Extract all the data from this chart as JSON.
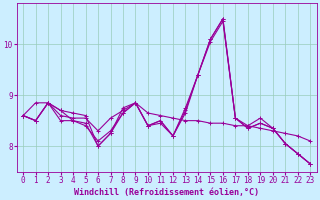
{
  "xlabel": "Windchill (Refroidissement éolien,°C)",
  "background_color": "#cceeff",
  "grid_color": "#99ccbb",
  "line_color": "#990099",
  "x": [
    0,
    1,
    2,
    3,
    4,
    5,
    6,
    7,
    8,
    9,
    10,
    11,
    12,
    13,
    14,
    15,
    16,
    17,
    18,
    19,
    20,
    21,
    22,
    23
  ],
  "series": [
    [
      8.6,
      8.5,
      8.85,
      8.6,
      8.55,
      8.55,
      8.3,
      8.55,
      8.7,
      8.85,
      8.65,
      8.6,
      8.55,
      8.5,
      8.5,
      8.45,
      8.45,
      8.4,
      8.4,
      8.35,
      8.3,
      8.25,
      8.2,
      8.1
    ],
    [
      8.6,
      8.5,
      8.85,
      8.5,
      8.5,
      8.4,
      8.1,
      8.3,
      8.65,
      8.85,
      8.4,
      8.45,
      8.2,
      8.75,
      9.4,
      10.05,
      10.45,
      8.55,
      8.4,
      8.55,
      8.35,
      8.05,
      7.85,
      7.65
    ],
    [
      8.6,
      8.5,
      8.85,
      8.7,
      8.5,
      8.45,
      8.0,
      8.25,
      8.65,
      8.85,
      8.4,
      8.5,
      8.2,
      8.7,
      9.4,
      10.1,
      10.5,
      8.55,
      8.35,
      8.45,
      8.35,
      8.05,
      7.85,
      7.65
    ],
    [
      8.6,
      8.85,
      8.85,
      8.7,
      8.65,
      8.6,
      8.0,
      8.25,
      8.75,
      8.85,
      8.4,
      8.5,
      8.2,
      8.65,
      9.4,
      10.1,
      10.5,
      8.55,
      8.35,
      8.45,
      8.35,
      8.05,
      7.85,
      7.65
    ]
  ],
  "ylim": [
    7.5,
    10.8
  ],
  "yticks": [
    8,
    9,
    10
  ],
  "xticks": [
    0,
    1,
    2,
    3,
    4,
    5,
    6,
    7,
    8,
    9,
    10,
    11,
    12,
    13,
    14,
    15,
    16,
    17,
    18,
    19,
    20,
    21,
    22,
    23
  ],
  "marker": "+",
  "markersize": 3,
  "linewidth": 0.8,
  "font_color": "#990099",
  "tick_fontsize": 5.5,
  "xlabel_fontsize": 6.0
}
